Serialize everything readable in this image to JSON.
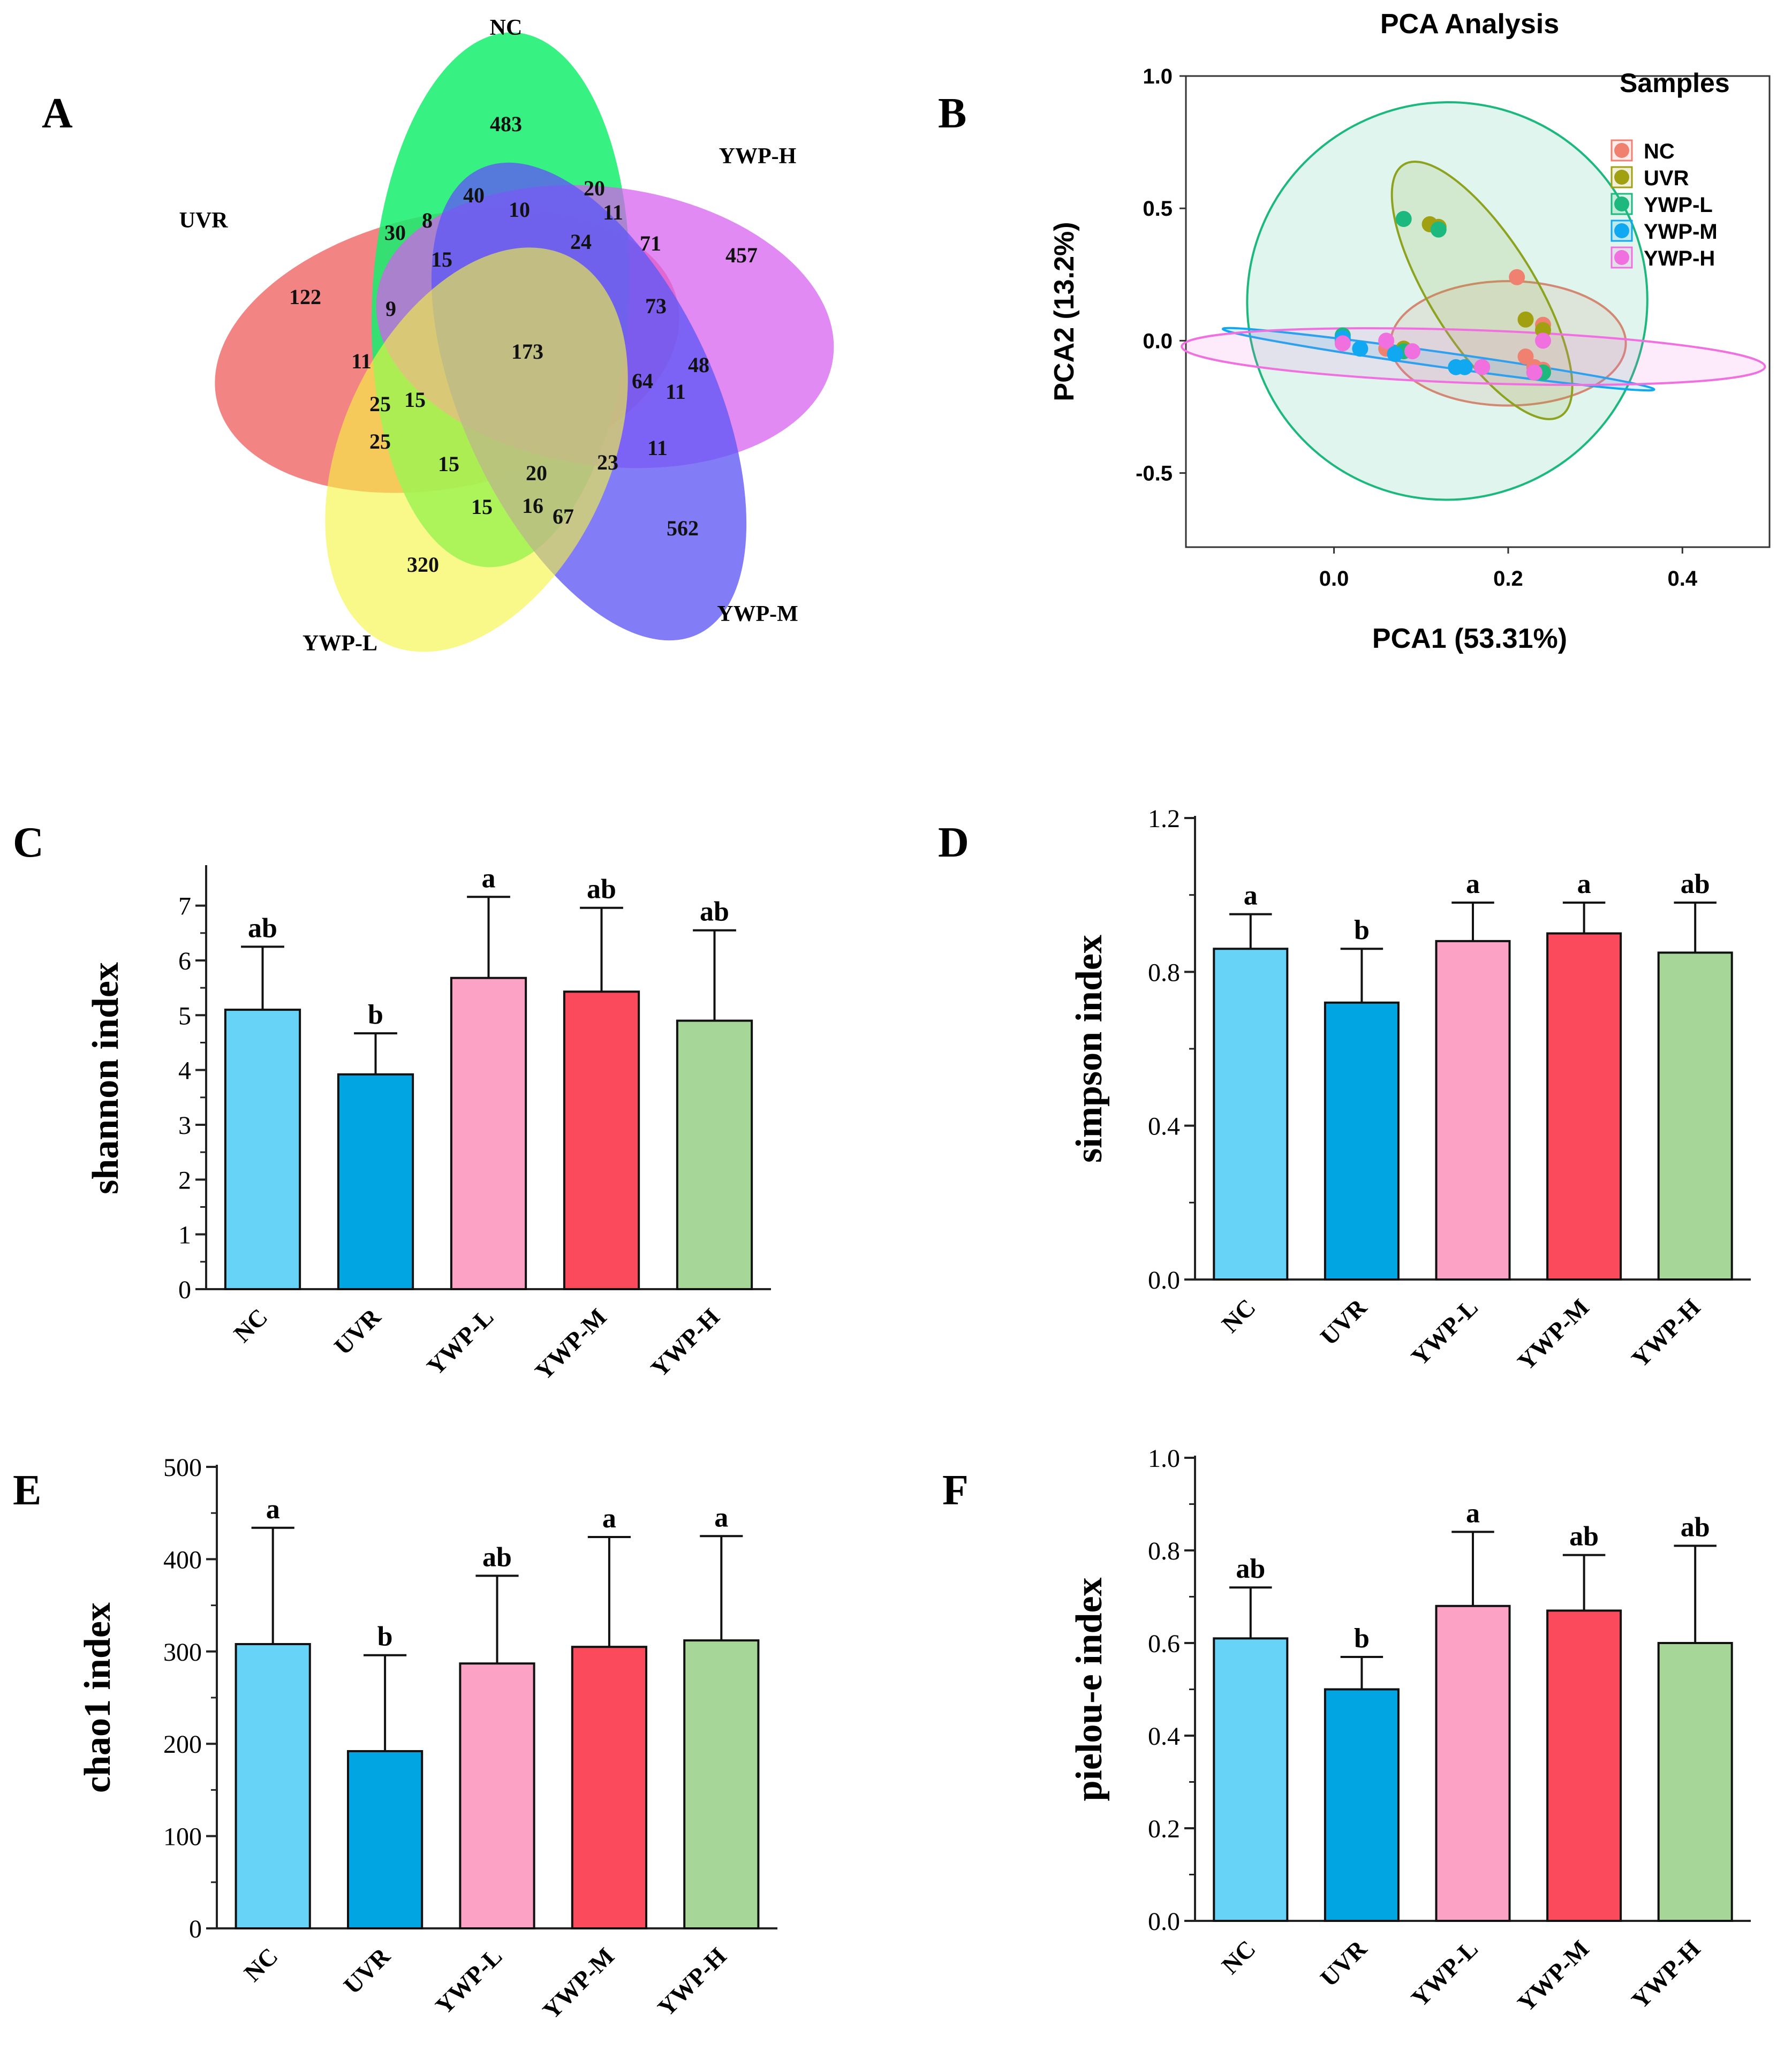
{
  "panels": {
    "a": "A",
    "b": "B",
    "c": "C",
    "d": "D",
    "e": "E",
    "f": "F"
  },
  "colors": {
    "NC": "#66d3f7",
    "UVR": "#00a5e2",
    "YWP-L": "#fca3c5",
    "YWP-M": "#fb4a5c",
    "YWP-H": "#a7d699"
  },
  "pca_colors": {
    "NC": "#f08070",
    "UVR": "#a0a010",
    "YWP-L": "#1db87e",
    "YWP-M": "#10a8f0",
    "YWP-H": "#f070e0"
  },
  "venn": {
    "labels": [
      {
        "text": "NC"
      },
      {
        "text": "YWP-H"
      },
      {
        "text": "UVR"
      },
      {
        "text": "YWP-M"
      },
      {
        "text": "YWP-L"
      }
    ],
    "counts": [
      "483",
      "457",
      "122",
      "562",
      "320",
      "40",
      "10",
      "20",
      "11",
      "30",
      "8",
      "15",
      "24",
      "71",
      "9",
      "73",
      "173",
      "11",
      "48",
      "64",
      "11",
      "25",
      "15",
      "25",
      "15",
      "20",
      "23",
      "11",
      "15",
      "16",
      "67"
    ]
  },
  "chart_data": [
    {
      "type": "scatter",
      "title": "PCA Analysis",
      "xlabel": "PCA1 (53.31%)",
      "ylabel": "PCA2 (13.2%)",
      "legend_title": "Samples",
      "xlim": [
        -0.17,
        0.5
      ],
      "ylim": [
        -0.78,
        1.0
      ],
      "xticks": [
        "0.0",
        "0.2",
        "0.4"
      ],
      "xtick_values": [
        0.0,
        0.2,
        0.4
      ],
      "yticks": [
        "-0.5",
        "0.0",
        "0.5",
        "1.0"
      ],
      "ytick_values": [
        -0.5,
        0.0,
        0.5,
        1.0
      ],
      "series": [
        {
          "name": "NC",
          "points": [
            [
              0.21,
              0.24
            ],
            [
              0.24,
              0.06
            ],
            [
              0.23,
              -0.1
            ],
            [
              0.22,
              -0.06
            ],
            [
              0.24,
              -0.11
            ],
            [
              0.06,
              -0.03
            ]
          ]
        },
        {
          "name": "UVR",
          "points": [
            [
              0.11,
              0.44
            ],
            [
              0.12,
              0.43
            ],
            [
              0.22,
              0.08
            ],
            [
              0.24,
              0.04
            ],
            [
              0.23,
              -0.12
            ],
            [
              0.08,
              -0.03
            ]
          ]
        },
        {
          "name": "YWP-L",
          "points": [
            [
              0.08,
              0.46
            ],
            [
              0.12,
              0.42
            ],
            [
              0.01,
              0.02
            ],
            [
              0.08,
              -0.04
            ],
            [
              0.24,
              -0.12
            ],
            [
              0.01,
              0.0
            ]
          ]
        },
        {
          "name": "YWP-M",
          "points": [
            [
              0.03,
              -0.03
            ],
            [
              0.07,
              -0.05
            ],
            [
              0.15,
              -0.1
            ],
            [
              0.17,
              -0.1
            ],
            [
              0.14,
              -0.1
            ],
            [
              0.01,
              0.01
            ]
          ]
        },
        {
          "name": "YWP-H",
          "points": [
            [
              0.06,
              0.0
            ],
            [
              0.24,
              0.0
            ],
            [
              0.23,
              -0.12
            ],
            [
              0.01,
              -0.01
            ],
            [
              0.09,
              -0.04
            ],
            [
              0.17,
              -0.1
            ]
          ]
        }
      ],
      "ellipses": [
        {
          "name": "NC",
          "center": [
            0.2,
            -0.01
          ],
          "rx": 0.135,
          "ry": 0.235,
          "angle": 0
        },
        {
          "name": "UVR",
          "center": [
            0.17,
            0.19
          ],
          "rx": 0.06,
          "ry": 0.56,
          "angle": 32
        },
        {
          "name": "YWP-L",
          "center": [
            0.13,
            0.15
          ],
          "rx": 0.23,
          "ry": 0.75,
          "angle": 22
        },
        {
          "name": "YWP-M",
          "center": [
            0.12,
            -0.07
          ],
          "rx": 0.25,
          "ry": 0.028,
          "angle": -8
        },
        {
          "name": "YWP-H",
          "center": [
            0.16,
            -0.06
          ],
          "rx": 0.335,
          "ry": 0.1,
          "angle": -2
        }
      ]
    },
    {
      "type": "bar",
      "panel": "C",
      "categories": [
        "NC",
        "UVR",
        "YWP-L",
        "YWP-M",
        "YWP-H"
      ],
      "values": [
        5.1,
        3.92,
        5.68,
        5.43,
        4.9
      ],
      "errors": [
        1.15,
        0.75,
        1.48,
        1.53,
        1.65
      ],
      "significance": [
        "ab",
        "b",
        "a",
        "ab",
        "ab"
      ],
      "ylabel": "shannon index",
      "ylim": [
        0,
        7.7
      ],
      "yticks": [
        "0",
        "1",
        "2",
        "3",
        "4",
        "5",
        "6",
        "7"
      ],
      "ytick_values": [
        0,
        1,
        2,
        3,
        4,
        5,
        6,
        7
      ]
    },
    {
      "type": "bar",
      "panel": "D",
      "categories": [
        "NC",
        "UVR",
        "YWP-L",
        "YWP-M",
        "YWP-H"
      ],
      "values": [
        0.86,
        0.72,
        0.88,
        0.9,
        0.85
      ],
      "errors": [
        0.09,
        0.14,
        0.1,
        0.08,
        0.13
      ],
      "significance": [
        "a",
        "b",
        "a",
        "a",
        "ab"
      ],
      "ylabel": "simpson index",
      "ylim": [
        0,
        1.2
      ],
      "yticks": [
        "0.0",
        "0.4",
        "0.8",
        "1.2"
      ],
      "ytick_values": [
        0,
        0.4,
        0.8,
        1.2
      ]
    },
    {
      "type": "bar",
      "panel": "E",
      "categories": [
        "NC",
        "UVR",
        "YWP-L",
        "YWP-M",
        "YWP-H"
      ],
      "values": [
        308,
        192,
        287,
        305,
        312
      ],
      "errors": [
        126,
        104,
        95,
        119,
        113
      ],
      "significance": [
        "a",
        "b",
        "ab",
        "a",
        "a"
      ],
      "ylabel": "chao1 index",
      "ylim": [
        0,
        500
      ],
      "yticks": [
        "0",
        "100",
        "200",
        "300",
        "400",
        "500"
      ],
      "ytick_values": [
        0,
        100,
        200,
        300,
        400,
        500
      ]
    },
    {
      "type": "bar",
      "panel": "F",
      "categories": [
        "NC",
        "UVR",
        "YWP-L",
        "YWP-M",
        "YWP-H"
      ],
      "values": [
        0.61,
        0.5,
        0.68,
        0.67,
        0.6
      ],
      "errors": [
        0.11,
        0.07,
        0.16,
        0.12,
        0.21
      ],
      "significance": [
        "ab",
        "b",
        "a",
        "ab",
        "ab"
      ],
      "ylabel": "pielou-e index",
      "ylim": [
        0,
        1.0
      ],
      "yticks": [
        "0.0",
        "0.2",
        "0.4",
        "0.6",
        "0.8",
        "1.0"
      ],
      "ytick_values": [
        0,
        0.2,
        0.4,
        0.6,
        0.8,
        1.0
      ]
    }
  ]
}
